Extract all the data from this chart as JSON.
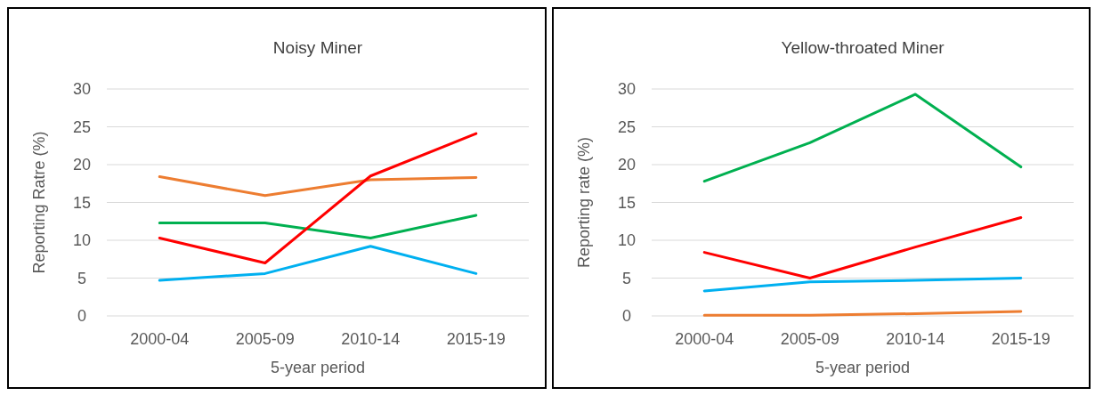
{
  "chart_data": [
    {
      "type": "line",
      "title": "Noisy Miner",
      "xlabel": "5-year period",
      "ylabel": "Reporting Ratre (%)",
      "categories": [
        "2000-04",
        "2005-09",
        "2010-14",
        "2015-19"
      ],
      "ylim": [
        0,
        30
      ],
      "yticks": [
        0,
        5,
        10,
        15,
        20,
        25,
        30
      ],
      "grid": "y",
      "series": [
        {
          "color": "#ed7d31",
          "values": [
            18.4,
            15.9,
            18.0,
            18.3
          ]
        },
        {
          "color": "#00b050",
          "values": [
            12.3,
            12.3,
            10.3,
            13.3
          ]
        },
        {
          "color": "#ff0000",
          "values": [
            10.3,
            7.0,
            18.5,
            24.1
          ]
        },
        {
          "color": "#00b0f0",
          "values": [
            4.7,
            5.6,
            9.2,
            5.6
          ]
        }
      ]
    },
    {
      "type": "line",
      "title": "Yellow-throated Miner",
      "xlabel": "5-year period",
      "ylabel": "Reporting rate (%)",
      "categories": [
        "2000-04",
        "2005-09",
        "2010-14",
        "2015-19"
      ],
      "ylim": [
        0,
        30
      ],
      "yticks": [
        0,
        5,
        10,
        15,
        20,
        25,
        30
      ],
      "grid": "y",
      "series": [
        {
          "color": "#00b050",
          "values": [
            17.8,
            22.9,
            29.3,
            19.7
          ]
        },
        {
          "color": "#ff0000",
          "values": [
            8.4,
            5.0,
            9.1,
            13.0
          ]
        },
        {
          "color": "#00b0f0",
          "values": [
            3.3,
            4.5,
            4.7,
            5.0
          ]
        },
        {
          "color": "#ed7d31",
          "values": [
            0.1,
            0.1,
            0.3,
            0.6
          ]
        }
      ]
    }
  ]
}
